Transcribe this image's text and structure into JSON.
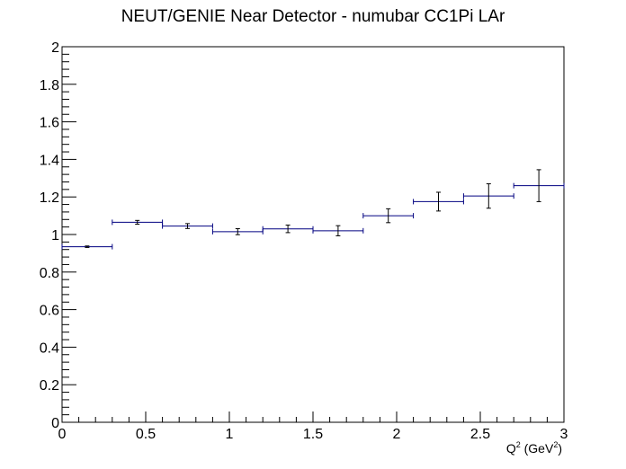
{
  "chart_data": {
    "type": "scatter",
    "title": "NEUT/GENIE Near Detector - numubar CC1Pi LAr",
    "xlabel": {
      "base": "Q",
      "sup1": "2",
      "mid": " (GeV",
      "sup2": "2",
      "end": ")"
    },
    "ylabel": "",
    "xlim": [
      0,
      3
    ],
    "ylim": [
      0,
      2
    ],
    "x_tick_labels": [
      "0",
      "0.5",
      "1",
      "1.5",
      "2",
      "2.5",
      "3"
    ],
    "y_tick_labels": [
      "0",
      "0.2",
      "0.4",
      "0.6",
      "0.8",
      "1",
      "1.2",
      "1.4",
      "1.6",
      "1.8",
      "2"
    ],
    "grid": false,
    "series_color": "#000080",
    "points": [
      {
        "xlow": 0.0,
        "xhigh": 0.3,
        "y": 0.935,
        "yerr": 0.004
      },
      {
        "xlow": 0.3,
        "xhigh": 0.6,
        "y": 1.065,
        "yerr": 0.01
      },
      {
        "xlow": 0.6,
        "xhigh": 0.9,
        "y": 1.045,
        "yerr": 0.013
      },
      {
        "xlow": 0.9,
        "xhigh": 1.2,
        "y": 1.015,
        "yerr": 0.016
      },
      {
        "xlow": 1.2,
        "xhigh": 1.5,
        "y": 1.03,
        "yerr": 0.02
      },
      {
        "xlow": 1.5,
        "xhigh": 1.8,
        "y": 1.02,
        "yerr": 0.027
      },
      {
        "xlow": 1.8,
        "xhigh": 2.1,
        "y": 1.1,
        "yerr": 0.037
      },
      {
        "xlow": 2.1,
        "xhigh": 2.4,
        "y": 1.175,
        "yerr": 0.05
      },
      {
        "xlow": 2.4,
        "xhigh": 2.7,
        "y": 1.205,
        "yerr": 0.065
      },
      {
        "xlow": 2.7,
        "xhigh": 3.0,
        "y": 1.26,
        "yerr": 0.085
      }
    ]
  }
}
